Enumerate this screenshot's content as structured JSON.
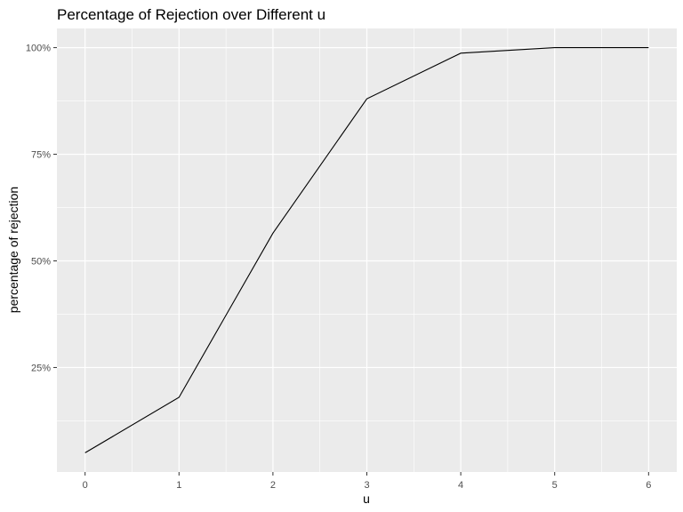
{
  "chart_data": {
    "type": "line",
    "title": "Percentage of Rejection over Different u",
    "xlabel": "u",
    "ylabel": "percentage of rejection",
    "x": [
      0,
      1,
      2,
      3,
      4,
      5,
      6
    ],
    "series": [
      {
        "values": [
          0.05,
          0.18,
          0.565,
          0.88,
          0.987,
          1.0,
          1.0
        ],
        "color": "#000000"
      }
    ],
    "xlim": [
      -0.3,
      6.3
    ],
    "ylim": [
      0.005,
      1.045
    ],
    "x_ticks": [
      0,
      1,
      2,
      3,
      4,
      5,
      6
    ],
    "x_tick_labels": [
      "0",
      "1",
      "2",
      "3",
      "4",
      "5",
      "6"
    ],
    "y_ticks": [
      0.25,
      0.5,
      0.75,
      1.0
    ],
    "y_tick_labels": [
      "25%",
      "50%",
      "75%",
      "100%"
    ],
    "grid": true,
    "legend": "none",
    "colors": {
      "panel_background": "#ebebeb",
      "grid": "#ffffff",
      "line": "#000000"
    }
  }
}
